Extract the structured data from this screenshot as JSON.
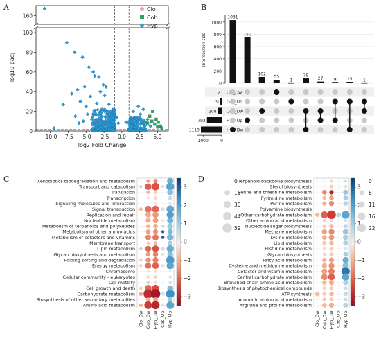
{
  "panels": [
    {
      "letter": "A",
      "chart_data": {
        "type": "scatter",
        "xlabel": "log2 Fold Change",
        "ylabel": "-log10 padj",
        "x_ticks": [
          -10.0,
          -7.5,
          -5.0,
          -2.5,
          0.0,
          2.5,
          5.0
        ],
        "y_ticks_lower": [
          0,
          20,
          40,
          60,
          80,
          100
        ],
        "y_ticks_upper": [
          160
        ],
        "xlim": [
          -12,
          6.5
        ],
        "y_axis_break": true,
        "thresholds": {
          "x": [
            -1,
            1
          ],
          "y": 1.3
        },
        "legend": {
          "position": "top-right",
          "entries": [
            "Clo",
            "Cob",
            "Hyp"
          ]
        },
        "series": [
          {
            "name": "Clo",
            "color": "#f4a0a0",
            "marker": "circle",
            "points": []
          },
          {
            "name": "Cob",
            "color": "#2ca25f",
            "marker": "square",
            "points": [
              [
                4.3,
                20
              ],
              [
                4.8,
                12
              ],
              [
                5.1,
                9
              ],
              [
                4.6,
                7
              ],
              [
                5.4,
                5
              ],
              [
                3.9,
                15
              ],
              [
                5.0,
                4
              ],
              [
                4.2,
                10
              ],
              [
                5.6,
                3
              ],
              [
                3.6,
                8
              ]
            ]
          },
          {
            "name": "Hyp",
            "color": "#2b9bd6",
            "marker": "diamond",
            "points": [
              [
                -10.8,
                168
              ],
              [
                -7.7,
                90
              ],
              [
                -6.6,
                80
              ],
              [
                -5.5,
                75
              ],
              [
                -4.6,
                65
              ],
              [
                -3.8,
                56
              ],
              [
                -5.2,
                45
              ],
              [
                -6.2,
                42
              ],
              [
                -4.0,
                60
              ],
              [
                -3.2,
                55
              ],
              [
                -2.6,
                47
              ],
              [
                -2.2,
                45
              ],
              [
                -4.4,
                35
              ],
              [
                -5.8,
                30
              ],
              [
                -7.0,
                38
              ],
              [
                -3.5,
                28
              ],
              [
                -2.8,
                22
              ],
              [
                -6.5,
                15
              ],
              [
                -4.8,
                17
              ],
              [
                -8.2,
                27
              ],
              [
                -3.0,
                40
              ],
              [
                -5.0,
                25
              ],
              [
                -2.4,
                36
              ],
              [
                -1.8,
                27
              ],
              [
                -1.5,
                20
              ],
              [
                -3.7,
                18
              ],
              [
                -4.2,
                12
              ],
              [
                -6.0,
                8
              ],
              [
                -5.4,
                10
              ],
              [
                -9.5,
                3
              ],
              [
                -2.0,
                14
              ],
              [
                1.6,
                20
              ],
              [
                2.3,
                25
              ],
              [
                3.0,
                22
              ],
              [
                3.6,
                12
              ],
              [
                2.0,
                14
              ],
              [
                1.4,
                10
              ],
              [
                2.6,
                17
              ],
              [
                3.2,
                8
              ],
              [
                1.8,
                7
              ],
              [
                4.0,
                5
              ],
              [
                -0.7,
                14
              ],
              [
                -0.5,
                8
              ],
              [
                0.6,
                9
              ]
            ]
          }
        ]
      }
    },
    {
      "letter": "B",
      "chart_data": {
        "type": "bar",
        "title": "",
        "ylabel": "Intersection size",
        "y_ticks": [
          0,
          200,
          400,
          600,
          800,
          1000
        ],
        "ylim": [
          0,
          1100
        ],
        "values": [
          1031,
          750,
          102,
          55,
          1,
          79,
          27,
          9,
          15,
          1
        ],
        "sets": [
          "Clo_Dw",
          "Cob_Up",
          "Cob_Dw",
          "Hyp_Up",
          "Hyp_Dw"
        ],
        "set_sizes": [
          2,
          79,
          208,
          793,
          1119
        ],
        "set_size_ticks": [
          1000,
          0
        ],
        "intersections": [
          [
            4
          ],
          [
            3
          ],
          [
            2
          ],
          [
            0
          ],
          [
            1
          ],
          [
            2,
            4
          ],
          [
            2,
            3
          ],
          [
            1,
            3
          ],
          [
            1,
            4
          ],
          [
            1,
            2
          ]
        ]
      }
    },
    {
      "letter": "C",
      "chart_data": {
        "type": "heatmap",
        "columns": [
          "Clo_Dw",
          "Cob_Dw",
          "Hyp_Dw",
          "Cob_Up",
          "Hyp_Up"
        ],
        "categories": [
          "Xenobiotics biodegradation and metabolism",
          "Transport and catabolism",
          "Translation",
          "Transcription",
          "Signaling molecules and interaction",
          "Signal transduction",
          "Replication and repair",
          "Nucleotide metabolism",
          "Metabolism of terpenoids and polyketides",
          "Metabolism of other amino acids",
          "Metabolism of cofactors and vitamins",
          "Membrane transport",
          "Lipid metabolism",
          "Glycan biosynthesis and metabolism",
          "Folding sorting and degradation",
          "Energy metabolism",
          "Chromosome",
          "Cellular community - eukaryotes",
          "Cell motility",
          "Cell growth and death",
          "Carbohydrate metabolism",
          "Biosynthesis of other secondary metabolites",
          "Amino acid metabolism"
        ],
        "colorbar_ticks": [
          3,
          2,
          1,
          0,
          -1,
          -2,
          -3
        ],
        "size_legend": [
          0,
          15,
          30,
          44,
          59
        ],
        "values": [
          [
            0,
            -1.2,
            -1.5,
            0,
            1.8
          ],
          [
            -0.6,
            -2.0,
            -2.2,
            0.3,
            2.0
          ],
          [
            0,
            -0.8,
            -0.5,
            0,
            1.4
          ],
          [
            0,
            -0.3,
            -0.4,
            0,
            0.6
          ],
          [
            0,
            0,
            -0.2,
            0,
            0.3
          ],
          [
            -0.8,
            -1.8,
            -1.9,
            0.4,
            1.9
          ],
          [
            0,
            -1.1,
            -1.3,
            0,
            2.1
          ],
          [
            0,
            -1.0,
            -1.2,
            0.2,
            1.7
          ],
          [
            0,
            -0.9,
            -1.0,
            0.4,
            1.2
          ],
          [
            0,
            -1.2,
            -1.4,
            3.0,
            1.5
          ],
          [
            0,
            -1.5,
            -1.7,
            3.0,
            1.6
          ],
          [
            0,
            -0.6,
            -0.8,
            0,
            1.0
          ],
          [
            -0.7,
            -1.9,
            -2.2,
            0.5,
            1.8
          ],
          [
            0,
            -1.3,
            -1.6,
            0.4,
            1.4
          ],
          [
            -0.6,
            -1.4,
            -1.6,
            0,
            2.2
          ],
          [
            -0.5,
            -1.8,
            -2.0,
            0.3,
            2.0
          ],
          [
            0,
            -0.2,
            -0.3,
            0,
            0.2
          ],
          [
            0,
            -0.4,
            -0.5,
            0,
            0.4
          ],
          [
            0,
            -0.6,
            -0.3,
            0,
            0.5
          ],
          [
            -0.5,
            -1.9,
            -2.3,
            0,
            1.5
          ],
          [
            -1.0,
            -2.8,
            -3.2,
            0.4,
            2.4
          ],
          [
            0,
            -1.0,
            -1.2,
            0,
            1.1
          ],
          [
            -0.9,
            -2.5,
            -2.9,
            0.3,
            2.0
          ]
        ],
        "sizes": [
          [
            0,
            6,
            8,
            0,
            24
          ],
          [
            3,
            26,
            35,
            4,
            40
          ],
          [
            0,
            6,
            5,
            0,
            20
          ],
          [
            0,
            3,
            4,
            0,
            8
          ],
          [
            0,
            0,
            2,
            0,
            4
          ],
          [
            5,
            28,
            32,
            6,
            35
          ],
          [
            0,
            15,
            20,
            0,
            30
          ],
          [
            0,
            12,
            15,
            3,
            22
          ],
          [
            0,
            8,
            10,
            5,
            18
          ],
          [
            0,
            10,
            12,
            3,
            15
          ],
          [
            0,
            18,
            22,
            4,
            25
          ],
          [
            0,
            4,
            6,
            0,
            12
          ],
          [
            3,
            20,
            26,
            6,
            30
          ],
          [
            0,
            10,
            14,
            3,
            18
          ],
          [
            3,
            14,
            18,
            0,
            42
          ],
          [
            3,
            20,
            24,
            4,
            30
          ],
          [
            0,
            2,
            3,
            0,
            2
          ],
          [
            0,
            3,
            3,
            0,
            3
          ],
          [
            0,
            4,
            2,
            0,
            4
          ],
          [
            4,
            28,
            30,
            0,
            20
          ],
          [
            8,
            55,
            59,
            6,
            45
          ],
          [
            0,
            8,
            10,
            0,
            12
          ],
          [
            6,
            36,
            42,
            5,
            35
          ]
        ]
      }
    },
    {
      "letter": "D",
      "chart_data": {
        "type": "heatmap",
        "columns": [
          "Clo_Dw",
          "Cob_Dw",
          "Hyp_Dw",
          "Cob_Up",
          "Hyp_Up"
        ],
        "categories": [
          "Terpenoid backbone biosynthesis",
          "Sterol biosynthesis",
          "Serine and threonine metabolism",
          "Pyrimidine metabolism",
          "Purine metabolism",
          "Polyamine biosynthesis",
          "Other carbohydrate metabolism",
          "Other amino acid metabolism",
          "Nucleotide sugar biosynthesis",
          "Methane metabolism",
          "Lysine metabolism",
          "Lipid metabolism",
          "Histidine metabolism",
          "Glycan biosynthesis",
          "Fatty acid metabolism",
          "Cysteine and methionine metabolism",
          "Cofactor and vitamin metabolism",
          "Central carbohydrate metabolism",
          "Branched-chain amino acid metabolism",
          "Biosynthesis of phytochemical compounds",
          "ATP synthesis",
          "Aromatic amino acid metabolism",
          "Arginine and proline metabolism"
        ],
        "colorbar_ticks": [
          3,
          2,
          1,
          0,
          -1,
          -2,
          -3
        ],
        "size_legend": [
          0,
          6,
          11,
          16,
          22
        ],
        "values": [
          [
            0,
            0,
            -0.4,
            0,
            0.5
          ],
          [
            0,
            0,
            -0.5,
            0,
            0.3
          ],
          [
            0,
            -1.5,
            -3.0,
            0,
            1.2
          ],
          [
            0,
            -0.8,
            -1.2,
            0,
            1.0
          ],
          [
            0,
            -1.0,
            -1.5,
            0,
            0.8
          ],
          [
            0,
            0,
            0,
            0,
            0
          ],
          [
            -0.8,
            -2.0,
            -2.5,
            0.8,
            2.0
          ],
          [
            0,
            -0.5,
            -0.3,
            0,
            0.4
          ],
          [
            0,
            -0.6,
            -0.8,
            0,
            0.7
          ],
          [
            0,
            -1.2,
            -1.5,
            0,
            1.2
          ],
          [
            0,
            -1.0,
            -1.3,
            0,
            1.0
          ],
          [
            0,
            -0.6,
            -0.8,
            0,
            0.9
          ],
          [
            0,
            -0.3,
            -0.5,
            0,
            0.3
          ],
          [
            0,
            -0.4,
            -0.6,
            0,
            1.0
          ],
          [
            0,
            -0.8,
            -1.2,
            0,
            1.8
          ],
          [
            0,
            -1.0,
            -1.4,
            0,
            1.4
          ],
          [
            0,
            -1.2,
            -1.6,
            0,
            2.8
          ],
          [
            0,
            -1.5,
            -2.0,
            0,
            2.0
          ],
          [
            0,
            -0.8,
            -1.0,
            0,
            0.9
          ],
          [
            0,
            -0.4,
            -0.6,
            0,
            0.5
          ],
          [
            -0.7,
            -0.6,
            -0.9,
            0,
            0.6
          ],
          [
            0,
            -0.5,
            -0.6,
            0,
            0.5
          ],
          [
            0,
            -0.8,
            -1.0,
            0,
            0.8
          ]
        ],
        "sizes": [
          [
            0,
            0,
            2,
            0,
            2
          ],
          [
            0,
            0,
            2,
            0,
            2
          ],
          [
            0,
            5,
            4,
            0,
            6
          ],
          [
            0,
            3,
            5,
            0,
            5
          ],
          [
            0,
            4,
            6,
            0,
            5
          ],
          [
            0,
            0,
            0,
            0,
            0
          ],
          [
            4,
            14,
            22,
            5,
            18
          ],
          [
            0,
            2,
            2,
            0,
            2
          ],
          [
            0,
            3,
            4,
            0,
            4
          ],
          [
            0,
            6,
            8,
            0,
            8
          ],
          [
            0,
            5,
            7,
            0,
            7
          ],
          [
            0,
            4,
            5,
            0,
            6
          ],
          [
            0,
            2,
            3,
            0,
            2
          ],
          [
            0,
            2,
            3,
            0,
            5
          ],
          [
            0,
            5,
            6,
            0,
            10
          ],
          [
            0,
            6,
            8,
            0,
            10
          ],
          [
            0,
            8,
            10,
            0,
            20
          ],
          [
            0,
            10,
            12,
            0,
            15
          ],
          [
            0,
            5,
            6,
            0,
            6
          ],
          [
            0,
            3,
            3,
            0,
            3
          ],
          [
            5,
            3,
            4,
            0,
            4
          ],
          [
            0,
            3,
            3,
            0,
            3
          ],
          [
            0,
            5,
            6,
            0,
            6
          ]
        ]
      }
    }
  ]
}
